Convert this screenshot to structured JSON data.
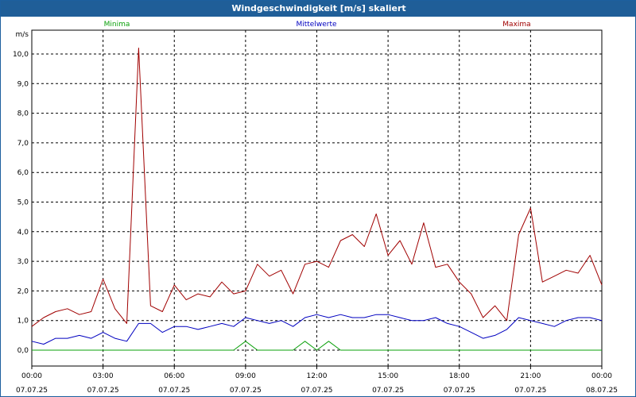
{
  "window": {
    "title": "Windgeschwindigkeit [m/s] skaliert"
  },
  "colors": {
    "min": "#0aa00a",
    "mean": "#0000c0",
    "max": "#a00000",
    "grid": "#000000"
  },
  "chart_data": {
    "type": "line",
    "title": "Windgeschwindigkeit [m/s] skaliert",
    "ylabel": "m/s",
    "ylim": [
      -0.5,
      11
    ],
    "xlim_hours": [
      0,
      24
    ],
    "grid": true,
    "legend_position": "top",
    "yticks": [
      "0,0",
      "1,0",
      "2,0",
      "3,0",
      "4,0",
      "5,0",
      "6,0",
      "7,0",
      "8,0",
      "9,0",
      "10,0"
    ],
    "xticks": [
      {
        "time": "00:00",
        "date": "07.07.25"
      },
      {
        "time": "03:00",
        "date": "07.07.25"
      },
      {
        "time": "06:00",
        "date": "07.07.25"
      },
      {
        "time": "09:00",
        "date": "07.07.25"
      },
      {
        "time": "12:00",
        "date": "07.07.25"
      },
      {
        "time": "15:00",
        "date": "07.07.25"
      },
      {
        "time": "18:00",
        "date": "07.07.25"
      },
      {
        "time": "21:00",
        "date": "07.07.25"
      },
      {
        "time": "00:00",
        "date": "08.07.25"
      }
    ],
    "x_hours": [
      0,
      0.5,
      1,
      1.5,
      2,
      2.5,
      3,
      3.5,
      4,
      4.5,
      5,
      5.5,
      6,
      6.5,
      7,
      7.5,
      8,
      8.5,
      9,
      9.5,
      10,
      10.5,
      11,
      11.5,
      12,
      12.5,
      13,
      13.5,
      14,
      14.5,
      15,
      15.5,
      16,
      16.5,
      17,
      17.5,
      18,
      18.5,
      19,
      19.5,
      20,
      20.5,
      21,
      21.5,
      22,
      22.5,
      23,
      23.5,
      24
    ],
    "series": [
      {
        "name": "Minima",
        "key": "min",
        "values": [
          0,
          0,
          0,
          0,
          0,
          0,
          0,
          0,
          0,
          0,
          0,
          0,
          0,
          0,
          0,
          0,
          0,
          0,
          0.3,
          0,
          0,
          0,
          0,
          0.3,
          0,
          0.3,
          0,
          0,
          0,
          0,
          0,
          0,
          0,
          0,
          0,
          0,
          0,
          0,
          0,
          0,
          0,
          0,
          0,
          0,
          0,
          0,
          0,
          0,
          0
        ]
      },
      {
        "name": "Mittelwerte",
        "key": "mean",
        "values": [
          0.3,
          0.2,
          0.4,
          0.4,
          0.5,
          0.4,
          0.6,
          0.4,
          0.3,
          0.9,
          0.9,
          0.6,
          0.8,
          0.8,
          0.7,
          0.8,
          0.9,
          0.8,
          1.1,
          1.0,
          0.9,
          1.0,
          0.8,
          1.1,
          1.2,
          1.1,
          1.2,
          1.1,
          1.1,
          1.2,
          1.2,
          1.1,
          1.0,
          1.0,
          1.1,
          0.9,
          0.8,
          0.6,
          0.4,
          0.5,
          0.7,
          1.1,
          1.0,
          0.9,
          0.8,
          1.0,
          1.1,
          1.1,
          1.0
        ]
      },
      {
        "name": "Maxima",
        "key": "max",
        "values": [
          0.8,
          1.1,
          1.3,
          1.4,
          1.2,
          1.3,
          2.4,
          1.4,
          0.9,
          10.2,
          1.5,
          1.3,
          2.2,
          1.7,
          1.9,
          1.8,
          2.3,
          1.9,
          2.0,
          2.9,
          2.5,
          2.7,
          1.9,
          2.9,
          3.0,
          2.8,
          3.7,
          3.9,
          3.5,
          4.6,
          3.2,
          3.7,
          2.9,
          4.3,
          2.8,
          2.9,
          2.3,
          1.9,
          1.1,
          1.5,
          1.0,
          3.9,
          4.8,
          2.3,
          2.5,
          2.7,
          2.6,
          3.2,
          2.2
        ]
      }
    ]
  }
}
